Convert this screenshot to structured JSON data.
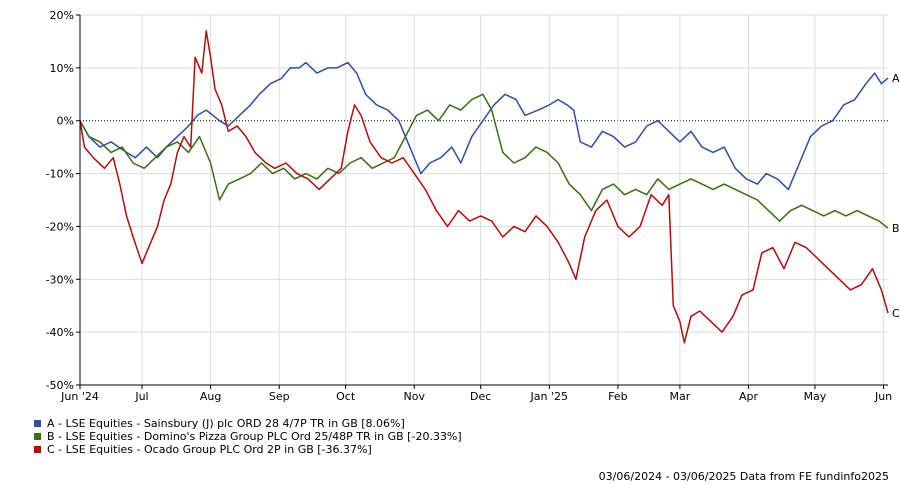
{
  "chart_data": {
    "type": "line",
    "x_range": [
      "2024-06-03",
      "2025-06-03"
    ],
    "ylim": [
      -50,
      20
    ],
    "y_ticks": [
      20,
      10,
      0,
      -10,
      -20,
      -30,
      -40,
      -50
    ],
    "y_tick_labels": [
      "20%",
      "10%",
      "0%",
      "-10%",
      "-20%",
      "-30%",
      "-40%",
      "-50%"
    ],
    "x_ticks": [
      {
        "date": "2024-06-03",
        "label": "Jun '24"
      },
      {
        "date": "2024-07-01",
        "label": "Jul"
      },
      {
        "date": "2024-08-01",
        "label": "Aug"
      },
      {
        "date": "2024-09-01",
        "label": "Sep"
      },
      {
        "date": "2024-10-01",
        "label": "Oct"
      },
      {
        "date": "2024-11-01",
        "label": "Nov"
      },
      {
        "date": "2024-12-01",
        "label": "Dec"
      },
      {
        "date": "2025-01-01",
        "label": "Jan '25"
      },
      {
        "date": "2025-02-01",
        "label": "Feb"
      },
      {
        "date": "2025-03-01",
        "label": "Mar"
      },
      {
        "date": "2025-04-01",
        "label": "Apr"
      },
      {
        "date": "2025-05-01",
        "label": "May"
      },
      {
        "date": "2025-06-01",
        "label": "Jun"
      }
    ],
    "grid": true,
    "zero_line": "dotted",
    "legend_position": "bottom-left",
    "series": [
      {
        "name": "A - LSE Equities - Sainsbury (J) plc ORD 28 4/7P TR in GB [8.06%]",
        "end_label": "A",
        "color": "#2f4fa3",
        "points": [
          [
            "2024-06-03",
            0
          ],
          [
            "2024-06-07",
            -3
          ],
          [
            "2024-06-12",
            -5
          ],
          [
            "2024-06-17",
            -4
          ],
          [
            "2024-06-24",
            -6
          ],
          [
            "2024-06-28",
            -7
          ],
          [
            "2024-07-03",
            -5
          ],
          [
            "2024-07-08",
            -7
          ],
          [
            "2024-07-12",
            -5
          ],
          [
            "2024-07-17",
            -3
          ],
          [
            "2024-07-22",
            -1
          ],
          [
            "2024-07-26",
            1
          ],
          [
            "2024-07-30",
            2
          ],
          [
            "2024-08-05",
            0
          ],
          [
            "2024-08-09",
            -1
          ],
          [
            "2024-08-14",
            1
          ],
          [
            "2024-08-19",
            3
          ],
          [
            "2024-08-23",
            5
          ],
          [
            "2024-08-28",
            7
          ],
          [
            "2024-09-02",
            8
          ],
          [
            "2024-09-06",
            10
          ],
          [
            "2024-09-10",
            10
          ],
          [
            "2024-09-13",
            11
          ],
          [
            "2024-09-18",
            9
          ],
          [
            "2024-09-23",
            10
          ],
          [
            "2024-09-27",
            10
          ],
          [
            "2024-10-02",
            11
          ],
          [
            "2024-10-06",
            9
          ],
          [
            "2024-10-10",
            5
          ],
          [
            "2024-10-15",
            3
          ],
          [
            "2024-10-20",
            2
          ],
          [
            "2024-10-25",
            0
          ],
          [
            "2024-10-30",
            -5
          ],
          [
            "2024-11-04",
            -10
          ],
          [
            "2024-11-08",
            -8
          ],
          [
            "2024-11-13",
            -7
          ],
          [
            "2024-11-18",
            -5
          ],
          [
            "2024-11-22",
            -8
          ],
          [
            "2024-11-27",
            -3
          ],
          [
            "2024-12-02",
            0
          ],
          [
            "2024-12-07",
            3
          ],
          [
            "2024-12-12",
            5
          ],
          [
            "2024-12-17",
            4
          ],
          [
            "2024-12-21",
            1
          ],
          [
            "2024-12-27",
            2
          ],
          [
            "2025-01-01",
            3
          ],
          [
            "2025-01-05",
            4
          ],
          [
            "2025-01-09",
            3
          ],
          [
            "2025-01-12",
            2
          ],
          [
            "2025-01-15",
            -4
          ],
          [
            "2025-01-20",
            -5
          ],
          [
            "2025-01-25",
            -2
          ],
          [
            "2025-01-30",
            -3
          ],
          [
            "2025-02-04",
            -5
          ],
          [
            "2025-02-09",
            -4
          ],
          [
            "2025-02-14",
            -1
          ],
          [
            "2025-02-19",
            0
          ],
          [
            "2025-02-24",
            -2
          ],
          [
            "2025-03-01",
            -4
          ],
          [
            "2025-03-06",
            -2
          ],
          [
            "2025-03-11",
            -5
          ],
          [
            "2025-03-16",
            -6
          ],
          [
            "2025-03-21",
            -5
          ],
          [
            "2025-03-26",
            -9
          ],
          [
            "2025-03-31",
            -11
          ],
          [
            "2025-04-05",
            -12
          ],
          [
            "2025-04-09",
            -10
          ],
          [
            "2025-04-14",
            -11
          ],
          [
            "2025-04-19",
            -13
          ],
          [
            "2025-04-24",
            -8
          ],
          [
            "2025-04-29",
            -3
          ],
          [
            "2025-05-04",
            -1
          ],
          [
            "2025-05-09",
            0
          ],
          [
            "2025-05-14",
            3
          ],
          [
            "2025-05-19",
            4
          ],
          [
            "2025-05-24",
            7
          ],
          [
            "2025-05-28",
            9
          ],
          [
            "2025-05-31",
            7
          ],
          [
            "2025-06-03",
            8.06
          ]
        ]
      },
      {
        "name": "B - LSE Equities - Domino's Pizza Group PLC Ord 25/48P TR in GB [-20.33%]",
        "end_label": "B",
        "color": "#3a6e12",
        "points": [
          [
            "2024-06-03",
            0
          ],
          [
            "2024-06-07",
            -3
          ],
          [
            "2024-06-12",
            -4
          ],
          [
            "2024-06-17",
            -6
          ],
          [
            "2024-06-22",
            -5
          ],
          [
            "2024-06-27",
            -8
          ],
          [
            "2024-07-02",
            -9
          ],
          [
            "2024-07-07",
            -7
          ],
          [
            "2024-07-12",
            -5
          ],
          [
            "2024-07-17",
            -4
          ],
          [
            "2024-07-22",
            -6
          ],
          [
            "2024-07-27",
            -3
          ],
          [
            "2024-08-01",
            -8
          ],
          [
            "2024-08-05",
            -15
          ],
          [
            "2024-08-09",
            -12
          ],
          [
            "2024-08-14",
            -11
          ],
          [
            "2024-08-19",
            -10
          ],
          [
            "2024-08-24",
            -8
          ],
          [
            "2024-08-29",
            -10
          ],
          [
            "2024-09-03",
            -9
          ],
          [
            "2024-09-08",
            -11
          ],
          [
            "2024-09-13",
            -10
          ],
          [
            "2024-09-18",
            -11
          ],
          [
            "2024-09-23",
            -9
          ],
          [
            "2024-09-28",
            -10
          ],
          [
            "2024-10-03",
            -8
          ],
          [
            "2024-10-08",
            -7
          ],
          [
            "2024-10-13",
            -9
          ],
          [
            "2024-10-18",
            -8
          ],
          [
            "2024-10-23",
            -7
          ],
          [
            "2024-10-28",
            -3
          ],
          [
            "2024-11-02",
            1
          ],
          [
            "2024-11-07",
            2
          ],
          [
            "2024-11-12",
            0
          ],
          [
            "2024-11-17",
            3
          ],
          [
            "2024-11-22",
            2
          ],
          [
            "2024-11-27",
            4
          ],
          [
            "2024-12-02",
            5
          ],
          [
            "2024-12-06",
            2
          ],
          [
            "2024-12-11",
            -6
          ],
          [
            "2024-12-16",
            -8
          ],
          [
            "2024-12-21",
            -7
          ],
          [
            "2024-12-26",
            -5
          ],
          [
            "2024-12-31",
            -6
          ],
          [
            "2025-01-05",
            -8
          ],
          [
            "2025-01-10",
            -12
          ],
          [
            "2025-01-15",
            -14
          ],
          [
            "2025-01-20",
            -17
          ],
          [
            "2025-01-25",
            -13
          ],
          [
            "2025-01-30",
            -12
          ],
          [
            "2025-02-04",
            -14
          ],
          [
            "2025-02-09",
            -13
          ],
          [
            "2025-02-14",
            -14
          ],
          [
            "2025-02-19",
            -11
          ],
          [
            "2025-02-24",
            -13
          ],
          [
            "2025-03-01",
            -12
          ],
          [
            "2025-03-06",
            -11
          ],
          [
            "2025-03-11",
            -12
          ],
          [
            "2025-03-16",
            -13
          ],
          [
            "2025-03-21",
            -12
          ],
          [
            "2025-03-26",
            -13
          ],
          [
            "2025-03-31",
            -14
          ],
          [
            "2025-04-05",
            -15
          ],
          [
            "2025-04-10",
            -17
          ],
          [
            "2025-04-15",
            -19
          ],
          [
            "2025-04-20",
            -17
          ],
          [
            "2025-04-25",
            -16
          ],
          [
            "2025-04-30",
            -17
          ],
          [
            "2025-05-05",
            -18
          ],
          [
            "2025-05-10",
            -17
          ],
          [
            "2025-05-15",
            -18
          ],
          [
            "2025-05-20",
            -17
          ],
          [
            "2025-05-25",
            -18
          ],
          [
            "2025-05-30",
            -19
          ],
          [
            "2025-06-03",
            -20.33
          ]
        ]
      },
      {
        "name": "C - LSE Equities - Ocado Group PLC Ord 2P in GB [-36.37%]",
        "end_label": "C",
        "color": "#b30d0d",
        "points": [
          [
            "2024-06-03",
            0
          ],
          [
            "2024-06-05",
            -5
          ],
          [
            "2024-06-09",
            -7
          ],
          [
            "2024-06-14",
            -9
          ],
          [
            "2024-06-18",
            -7
          ],
          [
            "2024-06-21",
            -12
          ],
          [
            "2024-06-24",
            -18
          ],
          [
            "2024-06-27",
            -22
          ],
          [
            "2024-07-01",
            -27
          ],
          [
            "2024-07-04",
            -24
          ],
          [
            "2024-07-08",
            -20
          ],
          [
            "2024-07-11",
            -15
          ],
          [
            "2024-07-14",
            -12
          ],
          [
            "2024-07-17",
            -6
          ],
          [
            "2024-07-20",
            -3
          ],
          [
            "2024-07-23",
            -5
          ],
          [
            "2024-07-25",
            12
          ],
          [
            "2024-07-28",
            9
          ],
          [
            "2024-07-30",
            17
          ],
          [
            "2024-08-01",
            12
          ],
          [
            "2024-08-03",
            6
          ],
          [
            "2024-08-06",
            3
          ],
          [
            "2024-08-09",
            -2
          ],
          [
            "2024-08-13",
            -1
          ],
          [
            "2024-08-17",
            -3
          ],
          [
            "2024-08-21",
            -6
          ],
          [
            "2024-08-26",
            -8
          ],
          [
            "2024-08-30",
            -9
          ],
          [
            "2024-09-04",
            -8
          ],
          [
            "2024-09-09",
            -10
          ],
          [
            "2024-09-14",
            -11
          ],
          [
            "2024-09-19",
            -13
          ],
          [
            "2024-09-24",
            -11
          ],
          [
            "2024-09-29",
            -9
          ],
          [
            "2024-10-02",
            -2
          ],
          [
            "2024-10-05",
            3
          ],
          [
            "2024-10-08",
            1
          ],
          [
            "2024-10-12",
            -4
          ],
          [
            "2024-10-17",
            -7
          ],
          [
            "2024-10-22",
            -8
          ],
          [
            "2024-10-27",
            -7
          ],
          [
            "2024-11-01",
            -10
          ],
          [
            "2024-11-06",
            -13
          ],
          [
            "2024-11-11",
            -17
          ],
          [
            "2024-11-16",
            -20
          ],
          [
            "2024-11-21",
            -17
          ],
          [
            "2024-11-26",
            -19
          ],
          [
            "2024-12-01",
            -18
          ],
          [
            "2024-12-06",
            -19
          ],
          [
            "2024-12-11",
            -22
          ],
          [
            "2024-12-16",
            -20
          ],
          [
            "2024-12-21",
            -21
          ],
          [
            "2024-12-26",
            -18
          ],
          [
            "2024-12-31",
            -20
          ],
          [
            "2025-01-05",
            -23
          ],
          [
            "2025-01-10",
            -27
          ],
          [
            "2025-01-13",
            -30
          ],
          [
            "2025-01-17",
            -22
          ],
          [
            "2025-01-22",
            -17
          ],
          [
            "2025-01-27",
            -15
          ],
          [
            "2025-02-01",
            -20
          ],
          [
            "2025-02-06",
            -22
          ],
          [
            "2025-02-11",
            -20
          ],
          [
            "2025-02-16",
            -14
          ],
          [
            "2025-02-21",
            -16
          ],
          [
            "2025-02-24",
            -14
          ],
          [
            "2025-02-26",
            -35
          ],
          [
            "2025-03-01",
            -38
          ],
          [
            "2025-03-03",
            -42
          ],
          [
            "2025-03-06",
            -37
          ],
          [
            "2025-03-10",
            -36
          ],
          [
            "2025-03-15",
            -38
          ],
          [
            "2025-03-20",
            -40
          ],
          [
            "2025-03-25",
            -37
          ],
          [
            "2025-03-29",
            -33
          ],
          [
            "2025-04-03",
            -32
          ],
          [
            "2025-04-07",
            -25
          ],
          [
            "2025-04-12",
            -24
          ],
          [
            "2025-04-17",
            -28
          ],
          [
            "2025-04-22",
            -23
          ],
          [
            "2025-04-27",
            -24
          ],
          [
            "2025-05-02",
            -26
          ],
          [
            "2025-05-07",
            -28
          ],
          [
            "2025-05-12",
            -30
          ],
          [
            "2025-05-17",
            -32
          ],
          [
            "2025-05-22",
            -31
          ],
          [
            "2025-05-27",
            -28
          ],
          [
            "2025-05-31",
            -32
          ],
          [
            "2025-06-03",
            -36.37
          ]
        ]
      }
    ]
  },
  "legend": {
    "items": [
      {
        "label": "A - LSE Equities - Sainsbury (J) plc ORD 28 4/7P TR in GB [8.06%]",
        "color": "#2f4fa3"
      },
      {
        "label": "B - LSE Equities - Domino's Pizza Group PLC Ord 25/48P TR in GB [-20.33%]",
        "color": "#3a6e12"
      },
      {
        "label": "C - LSE Equities - Ocado Group PLC Ord 2P in GB [-36.37%]",
        "color": "#b30d0d"
      }
    ]
  },
  "footer": {
    "text": "03/06/2024 - 03/06/2025 Data from FE fundinfo2025"
  }
}
